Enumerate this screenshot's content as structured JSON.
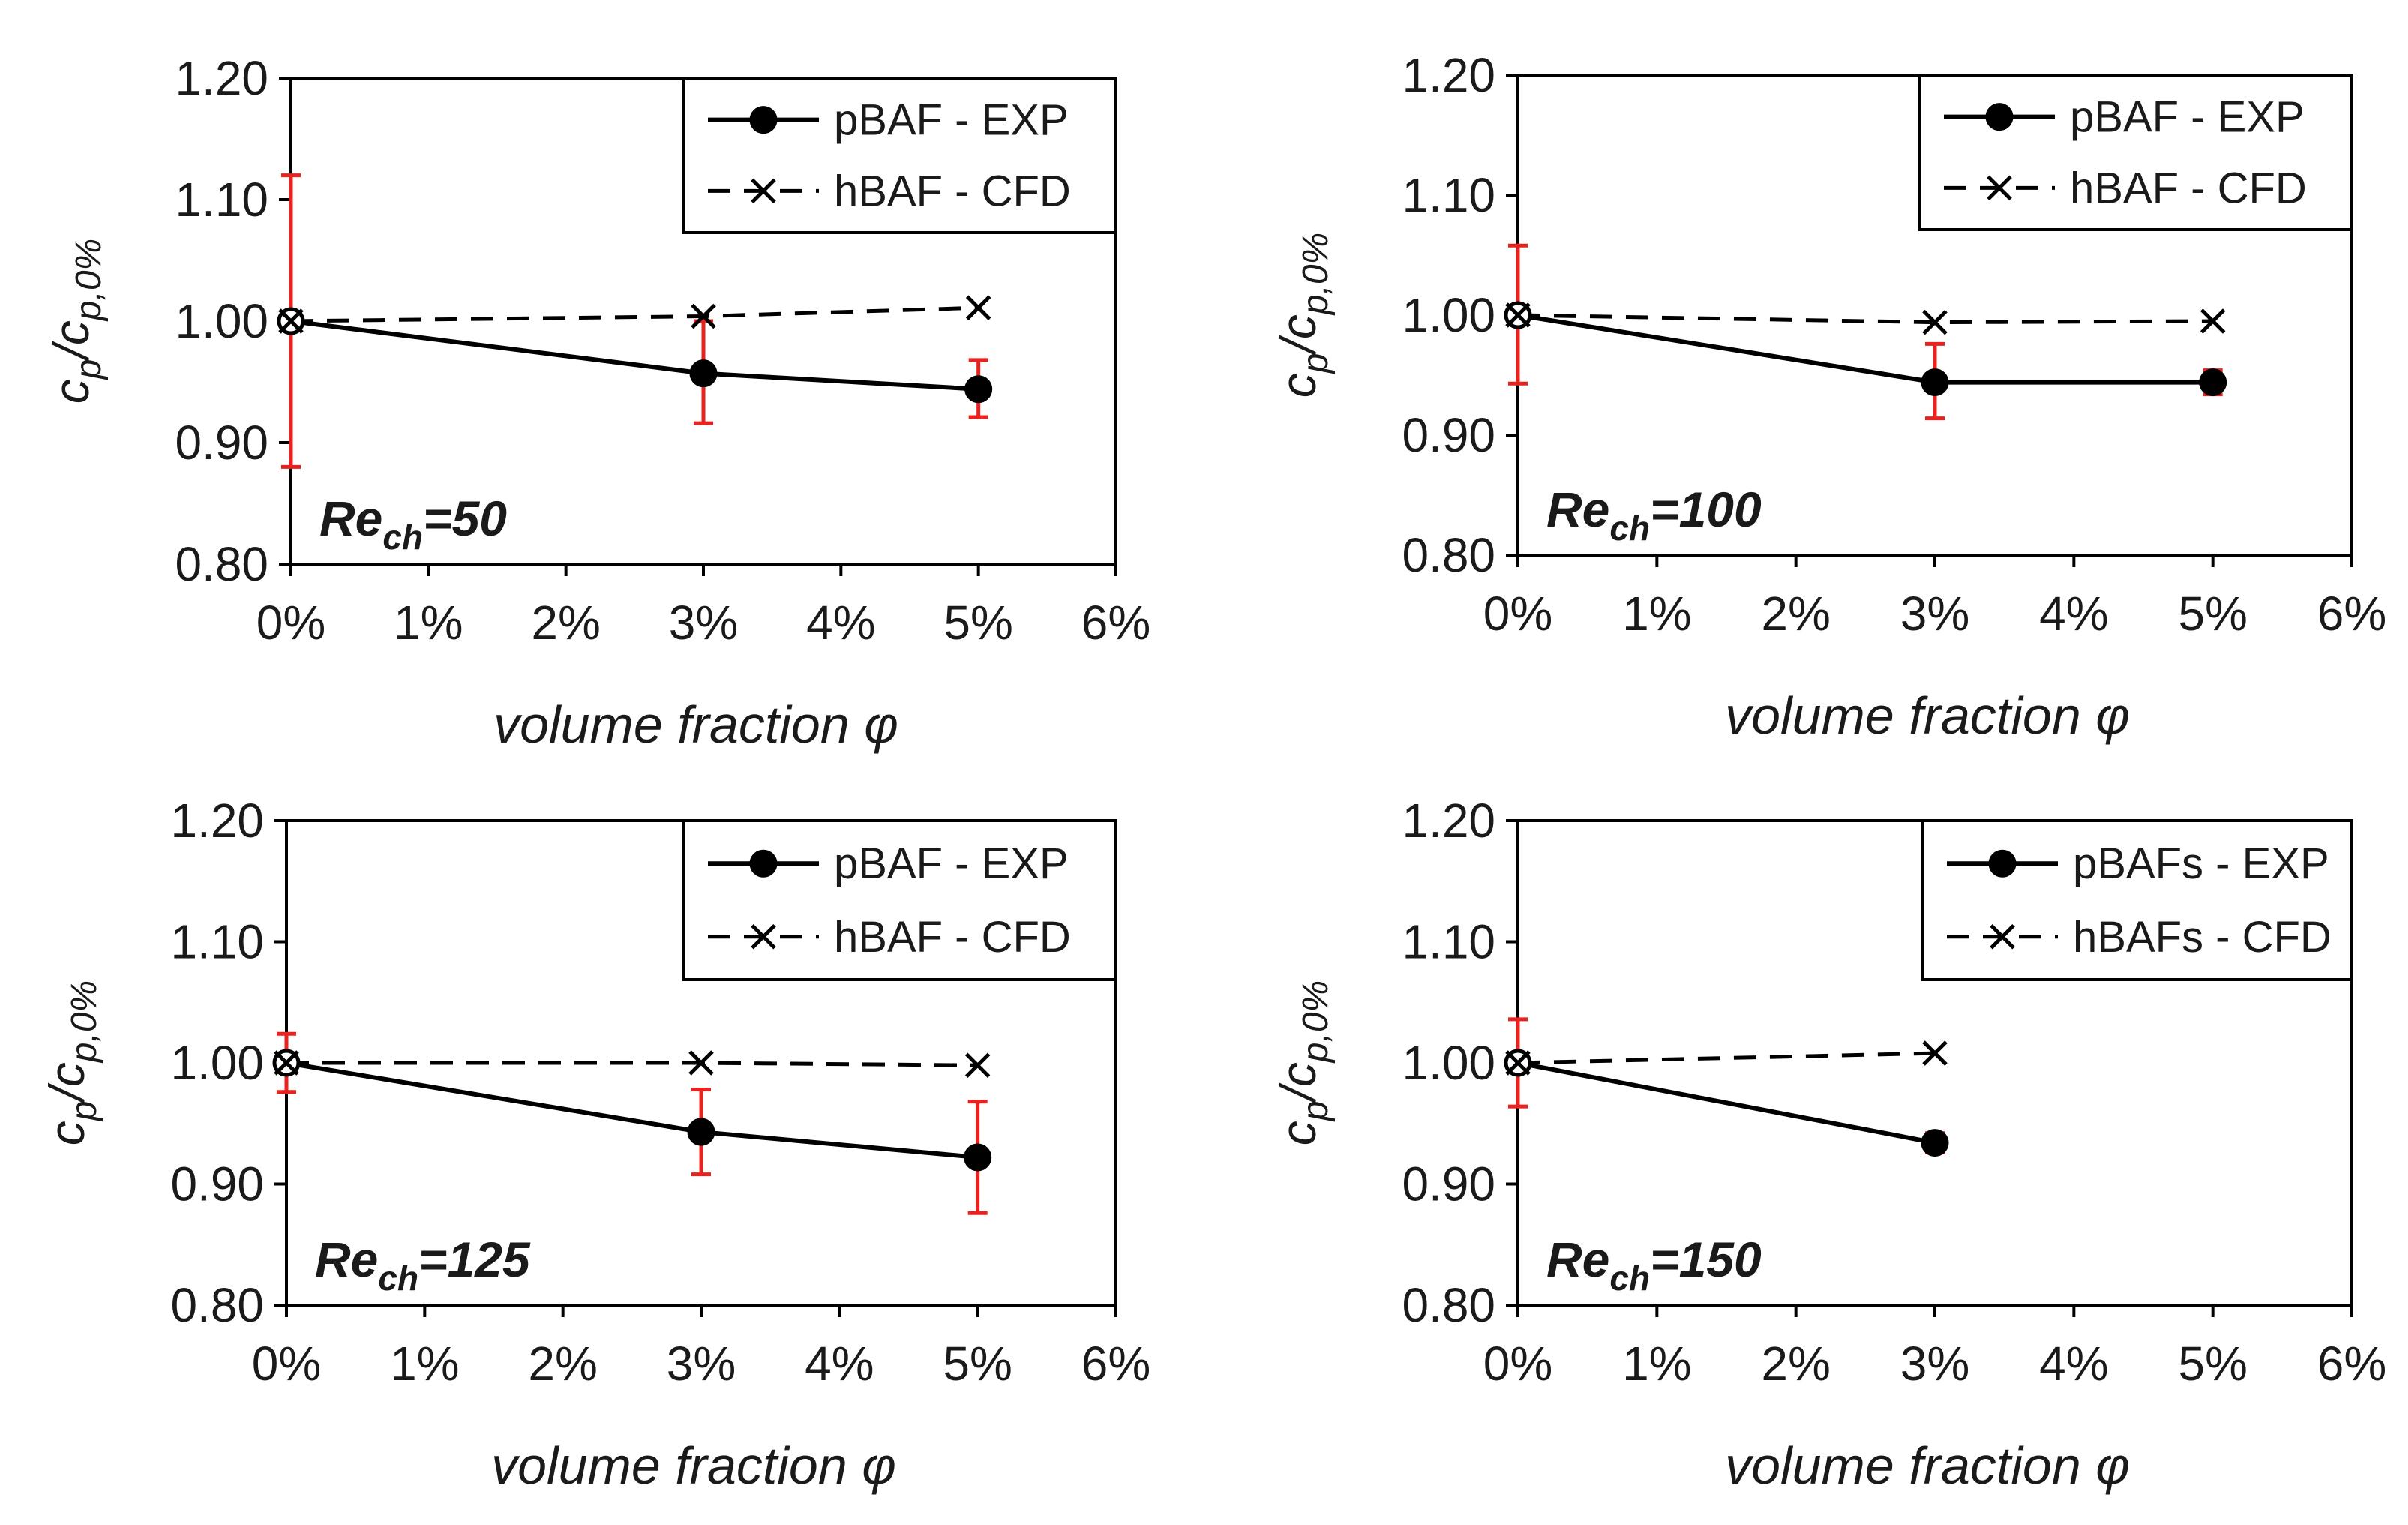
{
  "chart_data": [
    {
      "type": "line",
      "annotation": {
        "main": "Re",
        "sub": "ch",
        "value": "=50"
      },
      "xlabel": "volume fraction φ",
      "ylabel": {
        "main": "c",
        "sub1": "p",
        "sep": "/c",
        "sub2": "p,0%"
      },
      "x_ticks": [
        "0%",
        "1%",
        "2%",
        "3%",
        "4%",
        "5%",
        "6%"
      ],
      "y_ticks": [
        "0.80",
        "0.90",
        "1.00",
        "1.10",
        "1.20"
      ],
      "xlim": [
        0,
        6
      ],
      "ylim": [
        0.8,
        1.2
      ],
      "legend": {
        "placement": "top-right"
      },
      "series": [
        {
          "name": "pBAF - EXP",
          "style": "solid-circle",
          "x": [
            0,
            3,
            5
          ],
          "y": [
            1.0,
            0.957,
            0.944
          ],
          "error_low": [
            0.88,
            0.916,
            0.921
          ],
          "error_high": [
            1.12,
            1.0,
            0.968
          ]
        },
        {
          "name": "hBAF - CFD",
          "style": "dashed-cross",
          "x": [
            0,
            3,
            5
          ],
          "y": [
            1.0,
            1.004,
            1.011
          ]
        }
      ]
    },
    {
      "type": "line",
      "annotation": {
        "main": "Re",
        "sub": "ch",
        "value": "=100"
      },
      "xlabel": "volume fraction φ",
      "ylabel": {
        "main": "c",
        "sub1": "p",
        "sep": "/c",
        "sub2": "p,0%"
      },
      "x_ticks": [
        "0%",
        "1%",
        "2%",
        "3%",
        "4%",
        "5%",
        "6%"
      ],
      "y_ticks": [
        "0.80",
        "0.90",
        "1.00",
        "1.10",
        "1.20"
      ],
      "xlim": [
        0,
        6
      ],
      "ylim": [
        0.8,
        1.2
      ],
      "legend": {
        "placement": "top-right"
      },
      "series": [
        {
          "name": "pBAF - EXP",
          "style": "solid-circle",
          "x": [
            0,
            3,
            5
          ],
          "y": [
            1.0,
            0.944,
            0.944
          ],
          "error_low": [
            0.943,
            0.914,
            0.934
          ],
          "error_high": [
            1.058,
            0.976,
            0.954
          ]
        },
        {
          "name": "hBAF - CFD",
          "style": "dashed-cross",
          "x": [
            0,
            3,
            5
          ],
          "y": [
            1.0,
            0.994,
            0.995
          ]
        }
      ]
    },
    {
      "type": "line",
      "annotation": {
        "main": "Re",
        "sub": "ch",
        "value": "=125"
      },
      "xlabel": "volume fraction φ",
      "ylabel": {
        "main": "c",
        "sub1": "p",
        "sep": "/c",
        "sub2": "p,0%"
      },
      "x_ticks": [
        "0%",
        "1%",
        "2%",
        "3%",
        "4%",
        "5%",
        "6%"
      ],
      "y_ticks": [
        "0.80",
        "0.90",
        "1.00",
        "1.10",
        "1.20"
      ],
      "xlim": [
        0,
        6
      ],
      "ylim": [
        0.8,
        1.2
      ],
      "legend": {
        "placement": "top-right"
      },
      "series": [
        {
          "name": "pBAF - EXP",
          "style": "solid-circle",
          "x": [
            0,
            3,
            5
          ],
          "y": [
            1.0,
            0.943,
            0.922
          ],
          "error_low": [
            0.976,
            0.908,
            0.876
          ],
          "error_high": [
            1.024,
            0.978,
            0.968
          ]
        },
        {
          "name": "hBAF - CFD",
          "style": "dashed-cross",
          "x": [
            0,
            3,
            5
          ],
          "y": [
            1.0,
            1.0,
            0.998
          ]
        }
      ]
    },
    {
      "type": "line",
      "annotation": {
        "main": "Re",
        "sub": "ch",
        "value": "=150"
      },
      "xlabel": "volume fraction φ",
      "ylabel": {
        "main": "c",
        "sub1": "p",
        "sep": "/c",
        "sub2": "p,0%"
      },
      "x_ticks": [
        "0%",
        "1%",
        "2%",
        "3%",
        "4%",
        "5%",
        "6%"
      ],
      "y_ticks": [
        "0.80",
        "0.90",
        "1.00",
        "1.10",
        "1.20"
      ],
      "xlim": [
        0,
        6
      ],
      "ylim": [
        0.8,
        1.2
      ],
      "legend": {
        "placement": "top-right"
      },
      "series": [
        {
          "name": "pBAFs - EXP",
          "style": "solid-circle",
          "x": [
            0,
            3
          ],
          "y": [
            1.0,
            0.934
          ],
          "error_low": [
            0.964,
            0.926
          ],
          "error_high": [
            1.036,
            0.942
          ]
        },
        {
          "name": "hBAFs - CFD",
          "style": "dashed-cross",
          "x": [
            0,
            3
          ],
          "y": [
            1.0,
            1.008
          ]
        }
      ]
    }
  ],
  "colors": {
    "line": "#000000",
    "error_bar": "#e8231f",
    "text": "#1a1a1a",
    "background": "#ffffff"
  }
}
